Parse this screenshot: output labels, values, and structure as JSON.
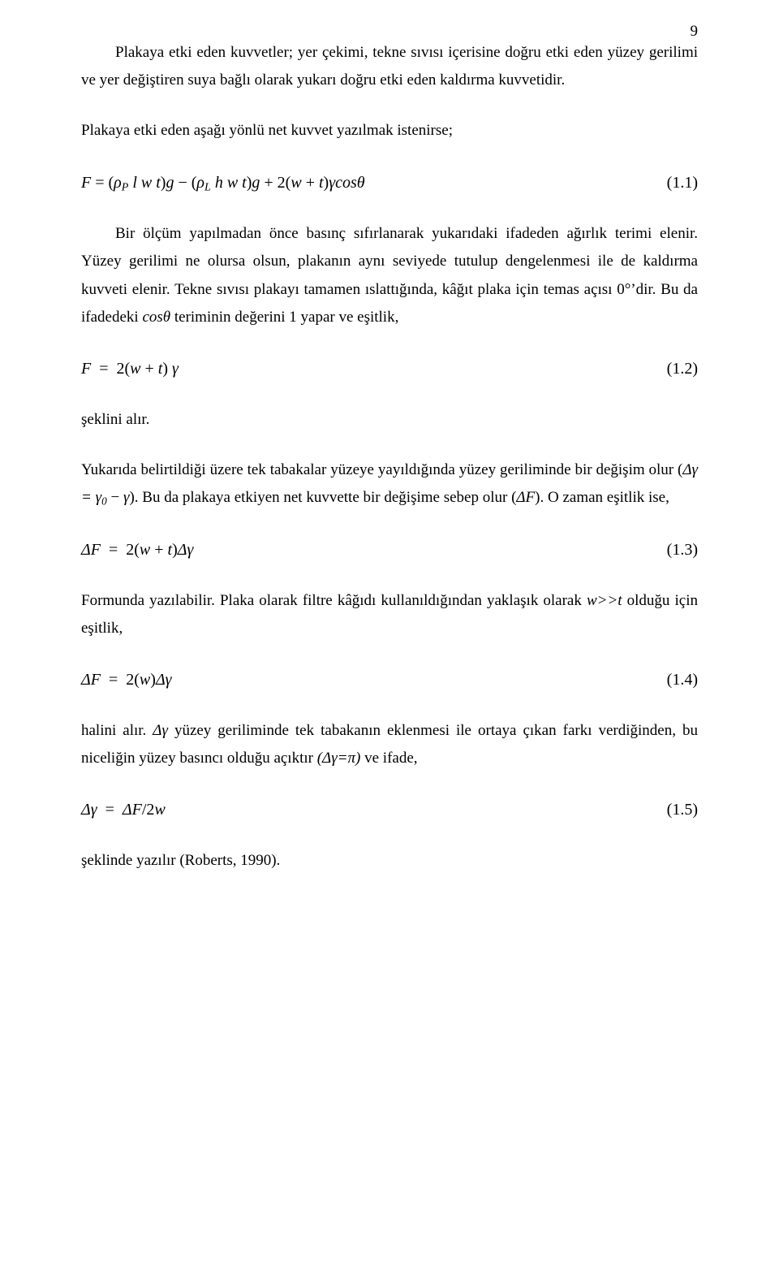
{
  "page_number": "9",
  "p1": "Plakaya etki eden kuvvetler; yer çekimi, tekne sıvısı içerisine doğru etki eden yüzey gerilimi ve yer değiştiren suya bağlı olarak yukarı doğru etki eden kaldırma kuvvetidir.",
  "p2": "Plakaya etki eden aşağı yönlü net kuvvet yazılmak istenirse;",
  "eq1": {
    "body": "F = (ρ_P l w t)g − (ρ_L h w t)g + 2(w + t)γcosθ",
    "num": "(1.1)"
  },
  "p3": "Bir ölçüm yapılmadan önce basınç sıfırlanarak yukarıdaki ifadeden ağırlık terimi elenir. Yüzey gerilimi ne olursa olsun, plakanın aynı seviyede tutulup dengelenmesi ile de kaldırma kuvveti elenir. Tekne sıvısı plakayı tamamen ıslattığında, kâğıt plaka için temas açısı 0°'dir. Bu da ifadedeki cosθ teriminin değerini 1 yapar ve eşitlik,",
  "eq2": {
    "body": "F = 2(w + t) γ",
    "num": "(1.2)"
  },
  "p4": "şeklini alır.",
  "p5": "Yukarıda belirtildiği üzere tek tabakalar yüzeye yayıldığında yüzey geriliminde bir değişim olur (Δγ = γ₀ − γ). Bu da plakaya etkiyen net kuvvette bir değişime sebep olur (ΔF). O zaman eşitlik ise,",
  "eq3": {
    "body": "ΔF = 2(w + t)Δγ",
    "num": "(1.3)"
  },
  "p6": "Formunda yazılabilir. Plaka olarak filtre kâğıdı kullanıldığından yaklaşık olarak w>>t olduğu için eşitlik,",
  "eq4": {
    "body": "ΔF = 2(w)Δγ",
    "num": "(1.4)"
  },
  "p7": "halini alır. Δγ yüzey geriliminde tek tabakanın eklenmesi ile ortaya çıkan farkı verdiğinden, bu niceliğin yüzey basıncı olduğu açıktır (Δγ=π) ve ifade,",
  "eq5": {
    "body": "Δγ = ΔF/2w",
    "num": "(1.5)"
  },
  "p8": "şeklinde yazılır (Roberts, 1990)."
}
